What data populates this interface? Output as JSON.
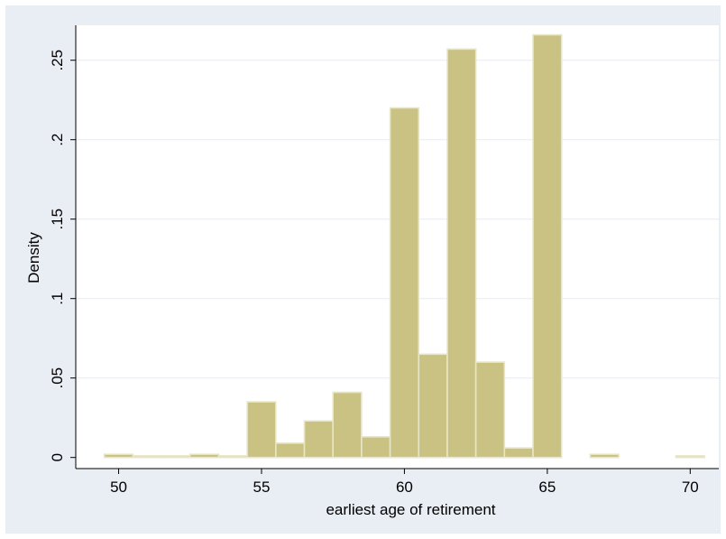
{
  "chart_data": {
    "type": "bar",
    "title": "",
    "xlabel": "earliest age of retirement",
    "ylabel": "Density",
    "bin_width": 1,
    "bins": [
      {
        "start": 49.5,
        "value": 0.002
      },
      {
        "start": 50.5,
        "value": 0.001
      },
      {
        "start": 51.5,
        "value": 0.001
      },
      {
        "start": 52.5,
        "value": 0.002
      },
      {
        "start": 53.5,
        "value": 0.001
      },
      {
        "start": 54.5,
        "value": 0.035
      },
      {
        "start": 55.5,
        "value": 0.009
      },
      {
        "start": 56.5,
        "value": 0.023
      },
      {
        "start": 57.5,
        "value": 0.041
      },
      {
        "start": 58.5,
        "value": 0.013
      },
      {
        "start": 59.5,
        "value": 0.22
      },
      {
        "start": 60.5,
        "value": 0.065
      },
      {
        "start": 61.5,
        "value": 0.257
      },
      {
        "start": 62.5,
        "value": 0.06
      },
      {
        "start": 63.5,
        "value": 0.006
      },
      {
        "start": 64.5,
        "value": 0.266
      },
      {
        "start": 66.5,
        "value": 0.002
      },
      {
        "start": 69.5,
        "value": 0.001
      }
    ],
    "xlim": [
      48.5,
      71
    ],
    "ylim": [
      -0.007,
      0.272
    ],
    "x_ticks": [
      50,
      55,
      60,
      65,
      70
    ],
    "x_tick_labels": [
      "50",
      "55",
      "60",
      "65",
      "70"
    ],
    "y_ticks": [
      0,
      0.05,
      0.1,
      0.15,
      0.2,
      0.25
    ],
    "y_tick_labels": [
      "0",
      ".05",
      ".1",
      ".15",
      ".2",
      ".25"
    ],
    "grid": true,
    "colors": {
      "bar_fill": "#c9c283",
      "bar_edge": "#e8e6c8",
      "outer_background": "#e9edf4",
      "plot_background": "#ffffff",
      "grid": "#e6ebf2",
      "axis": "#000000"
    }
  }
}
